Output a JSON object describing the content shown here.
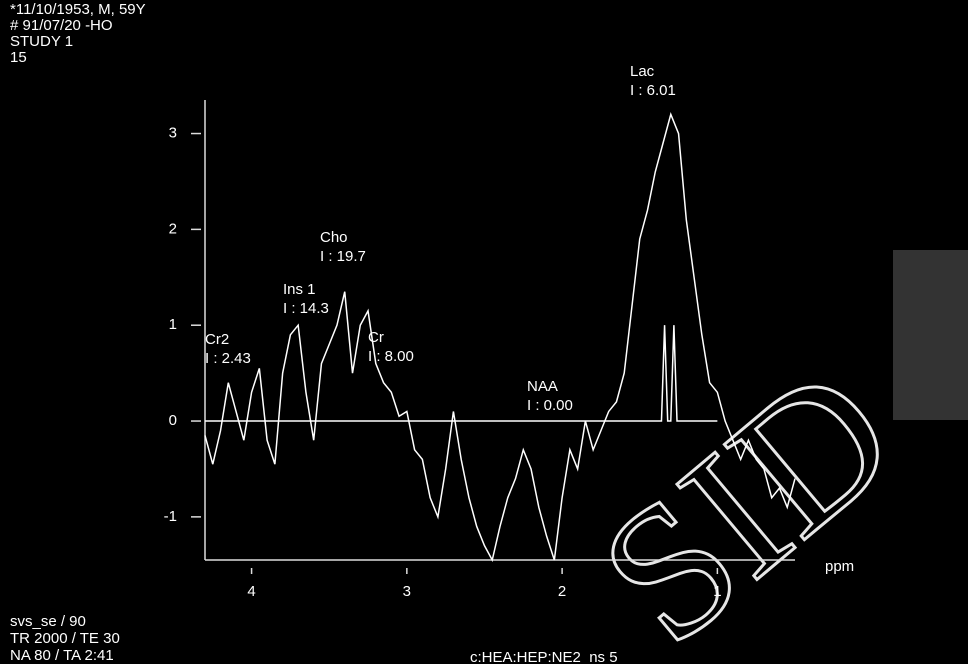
{
  "header": [
    "*11/10/1953, M, 59Y",
    "# 91/07/20 -HO",
    "STUDY 1",
    "15"
  ],
  "footer": [
    "svs_se / 90",
    "TR 2000 / TE 30",
    "NA 80 / TA 2:41"
  ],
  "protocol": "c:HEA:HEP:NE2_ns 5",
  "watermark": "SID",
  "chart_data": {
    "type": "line",
    "x_label": "ppm",
    "xlim": [
      4.3,
      0.5
    ],
    "xticks": [
      4,
      3,
      2,
      1
    ],
    "ylim": [
      -1.45,
      3.35
    ],
    "yticks": [
      3,
      2,
      1,
      0,
      -1
    ],
    "annotations": [
      {
        "label": "Cr2",
        "text": "I : 2.43"
      },
      {
        "label": "Ins 1",
        "text": "I : 14.3"
      },
      {
        "label": "Cho",
        "text": "I : 19.7"
      },
      {
        "label": "Cr",
        "text": "I : 8.00"
      },
      {
        "label": "NAA",
        "text": "I : 0.00"
      },
      {
        "label": "Lac",
        "text": "I : 6.01"
      }
    ],
    "series": [
      {
        "color": "#ffffff",
        "x": [
          4.3,
          4.25,
          4.2,
          4.15,
          4.1,
          4.05,
          4.0,
          3.95,
          3.9,
          3.85,
          3.8,
          3.75,
          3.7,
          3.65,
          3.6,
          3.55,
          3.5,
          3.45,
          3.4,
          3.35,
          3.3,
          3.25,
          3.2,
          3.15,
          3.1,
          3.05,
          3.0,
          2.95,
          2.9,
          2.85,
          2.8,
          2.75,
          2.7,
          2.65,
          2.6,
          2.55,
          2.5,
          2.45,
          2.4,
          2.35,
          2.3,
          2.25,
          2.2,
          2.15,
          2.1,
          2.05,
          2.0,
          1.95,
          1.9,
          1.85,
          1.8,
          1.75,
          1.7,
          1.65,
          1.6,
          1.55,
          1.5,
          1.45,
          1.4,
          1.35,
          1.3,
          1.25,
          1.2,
          1.15,
          1.1,
          1.05,
          1.0,
          0.95,
          0.9,
          0.85,
          0.8,
          0.75,
          0.7,
          0.65,
          0.6,
          0.55,
          0.5
        ],
        "values": [
          -0.15,
          -0.45,
          -0.1,
          0.4,
          0.1,
          -0.2,
          0.3,
          0.55,
          -0.2,
          -0.45,
          0.5,
          0.9,
          1.0,
          0.3,
          -0.2,
          0.6,
          0.8,
          1.0,
          1.35,
          0.5,
          1.0,
          1.15,
          0.6,
          0.4,
          0.3,
          0.05,
          0.1,
          -0.3,
          -0.4,
          -0.8,
          -1.0,
          -0.5,
          0.1,
          -0.4,
          -0.8,
          -1.1,
          -1.3,
          -1.45,
          -1.1,
          -0.8,
          -0.6,
          -0.3,
          -0.5,
          -0.9,
          -1.2,
          -1.45,
          -0.8,
          -0.3,
          -0.5,
          0.0,
          -0.3,
          -0.1,
          0.1,
          0.2,
          0.5,
          1.2,
          1.9,
          2.2,
          2.6,
          2.9,
          3.2,
          3.0,
          2.1,
          1.5,
          0.9,
          0.4,
          0.3,
          0.0,
          -0.2,
          -0.4,
          -0.2,
          -0.4,
          -0.5,
          -0.8,
          -0.7,
          -0.9,
          -0.6
        ]
      },
      {
        "color": "#ffffff",
        "x": [
          4.3,
          3.0,
          1.36,
          1.34,
          1.32,
          1.3,
          1.28,
          1.26,
          1.24,
          1.0
        ],
        "values": [
          0,
          0,
          0,
          1.0,
          0,
          0,
          1.0,
          0,
          0,
          0
        ]
      }
    ]
  }
}
